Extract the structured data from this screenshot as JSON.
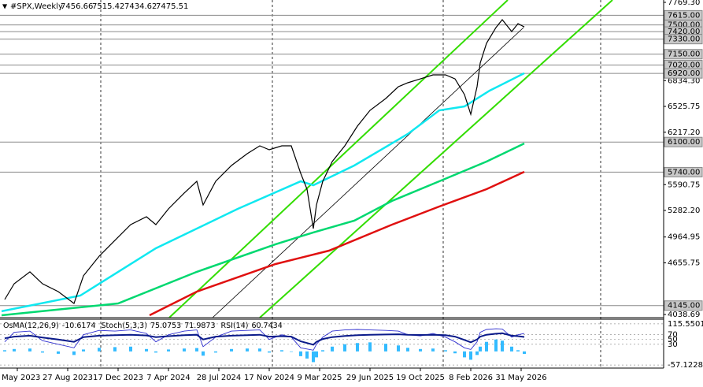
{
  "chart_data": {
    "type": "line",
    "symbol": "#SPX,Weekly",
    "ohlc": [
      7456.66,
      7515.42,
      7434.62,
      7475.51
    ],
    "xlim": [
      -5.5,
      205.25
    ],
    "xticks": [
      {
        "value": 0,
        "label": "7 May 2023"
      },
      {
        "value": 16,
        "label": "27 Aug 2023"
      },
      {
        "value": 32,
        "label": "17 Dec 2023"
      },
      {
        "value": 48,
        "label": "7 Apr 2024"
      },
      {
        "value": 64,
        "label": "28 Jul 2024"
      },
      {
        "value": 80,
        "label": "17 Nov 2024"
      },
      {
        "value": 96,
        "label": "9 Mar 2025"
      },
      {
        "value": 112,
        "label": "29 Jun 2025"
      },
      {
        "value": 128,
        "label": "19 Oct 2025"
      },
      {
        "value": 144,
        "label": "8 Feb 2026"
      },
      {
        "value": 160,
        "label": "31 May 2026"
      }
    ],
    "ylim": [
      4001,
      7797.6
    ],
    "yticks": [
      {
        "value": 7769.3,
        "label": "7769.30"
      },
      {
        "value": 6834.3,
        "label": "6834.30"
      },
      {
        "value": 6525.75,
        "label": "6525.75"
      },
      {
        "value": 6217.2,
        "label": "6217.20"
      },
      {
        "value": 5590.75,
        "label": "5590.75"
      },
      {
        "value": 5282.2,
        "label": "5282.20"
      },
      {
        "value": 4964.95,
        "label": "4964.95"
      },
      {
        "value": 4655.75,
        "label": "4655.75"
      },
      {
        "value": 4038.69,
        "label": "4038.69"
      }
    ],
    "levels": [
      {
        "value": 7615,
        "label": "7615.00"
      },
      {
        "value": 7500,
        "label": "7500.00"
      },
      {
        "value": 7420,
        "label": "7420.00"
      },
      {
        "value": 7330,
        "label": "7330.00"
      },
      {
        "value": 7150,
        "label": "7150.00"
      },
      {
        "value": 7020,
        "label": "7020.00"
      },
      {
        "value": 6920,
        "label": "6920.00"
      },
      {
        "value": 6100,
        "label": "6100.00"
      },
      {
        "value": 5740,
        "label": "5740.00"
      },
      {
        "value": 4145,
        "label": "4145.00"
      }
    ],
    "x": [
      -4,
      -1,
      4,
      8,
      13,
      18,
      21,
      26,
      31,
      36,
      41,
      44,
      48,
      53,
      57,
      59,
      63,
      68,
      73,
      77,
      80,
      84,
      87,
      90,
      92,
      94,
      95,
      97,
      100,
      104,
      108,
      112,
      117,
      121,
      124,
      128,
      132,
      136,
      139,
      142,
      144,
      146,
      147,
      149,
      152,
      154,
      157,
      159,
      161
    ],
    "series": [
      {
        "color": "#000000",
        "values": [
          4218,
          4406,
          4548,
          4406,
          4312,
          4171,
          4501,
          4736,
          4925,
          5113,
          5207,
          5113,
          5301,
          5490,
          5631,
          5348,
          5631,
          5819,
          5961,
          6055,
          6008,
          6055,
          6055,
          5725,
          5537,
          5066,
          5348,
          5631,
          5866,
          6055,
          6290,
          6479,
          6620,
          6761,
          6808,
          6855,
          6903,
          6903,
          6855,
          6667,
          6432,
          6761,
          7044,
          7280,
          7468,
          7562,
          7421,
          7515,
          7475.51
        ]
      }
    ],
    "moving_averages": [
      {
        "color": "#10e8f0",
        "x": [
          -5,
          20,
          44,
          70,
          90,
          94,
          107,
          124,
          134,
          142,
          150,
          161
        ],
        "values": [
          4077,
          4265,
          4830,
          5301,
          5631,
          5584,
          5819,
          6196,
          6479,
          6526,
          6714,
          6922
        ]
      },
      {
        "color": "#00d870",
        "x": [
          -5,
          32,
          57,
          82,
          94,
          107,
          119,
          134,
          149,
          161
        ],
        "values": [
          4029,
          4171,
          4548,
          4878,
          5019,
          5160,
          5396,
          5631,
          5866,
          6083
        ]
      },
      {
        "color": "#e01010",
        "x": [
          42,
          57,
          82,
          99,
          119,
          134,
          149,
          161
        ],
        "values": [
          4029,
          4312,
          4642,
          4802,
          5113,
          5329,
          5537,
          5744
        ]
      }
    ],
    "trendlines": [
      {
        "color": "#33dd00",
        "x": [
          48.25,
          155.75
        ],
        "values": [
          4001,
          7797.6
        ]
      },
      {
        "color": "#33dd00",
        "x": [
          77,
          189
        ],
        "values": [
          4001,
          7797.6
        ]
      },
      {
        "color": "#000000",
        "x": [
          62,
          160.75
        ],
        "values": [
          4001,
          7468
        ]
      }
    ],
    "indicator": {
      "ylim": [
        -70,
        135
      ],
      "yticks": [
        115.5501,
        70,
        50,
        30,
        -57.1228
      ],
      "osma": {
        "label": "OsMA(12,26,9)",
        "color": "#33bbff",
        "values": [
          5,
          10,
          12,
          -5,
          -10,
          -15,
          8,
          15,
          18,
          20,
          10,
          -5,
          8,
          12,
          14,
          -18,
          -5,
          10,
          12,
          12,
          -5,
          5,
          -2,
          -20,
          -30,
          -45,
          -25,
          5,
          20,
          30,
          35,
          38,
          32,
          25,
          15,
          10,
          12,
          5,
          -8,
          -25,
          -35,
          -15,
          20,
          40,
          50,
          45,
          20,
          5,
          -10.6174
        ]
      },
      "stoch": {
        "label": "Stoch(5,3,3)",
        "color": "#3030d0",
        "signal_last": 71.9873,
        "values": [
          40,
          80,
          85,
          45,
          30,
          15,
          70,
          88,
          85,
          90,
          75,
          40,
          70,
          85,
          90,
          20,
          60,
          85,
          88,
          90,
          50,
          70,
          60,
          15,
          10,
          5,
          30,
          60,
          85,
          90,
          92,
          90,
          88,
          85,
          70,
          65,
          75,
          60,
          40,
          15,
          8,
          40,
          80,
          92,
          95,
          94,
          60,
          70,
          75.0753
        ]
      },
      "rsi": {
        "label": "RSI(14)",
        "color": "#0a1a8a",
        "values": [
          55,
          62,
          66,
          58,
          50,
          40,
          60,
          66,
          68,
          70,
          67,
          60,
          64,
          68,
          70,
          50,
          62,
          66,
          68,
          70,
          62,
          64,
          62,
          42,
          35,
          28,
          40,
          52,
          60,
          65,
          68,
          70,
          71,
          72,
          70,
          69,
          70,
          68,
          62,
          48,
          38,
          50,
          62,
          70,
          74,
          76,
          66,
          64,
          60.7434
        ]
      }
    }
  }
}
